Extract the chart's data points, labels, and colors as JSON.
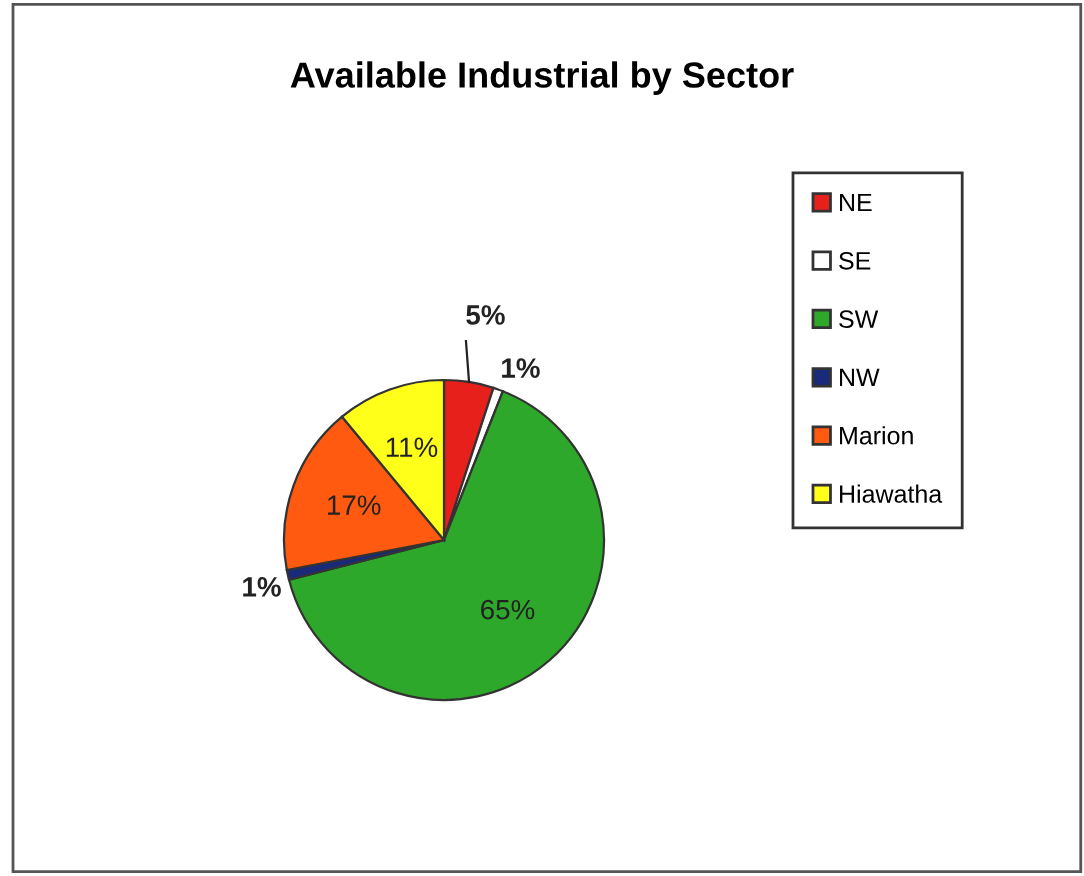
{
  "chart_data": {
    "type": "pie",
    "title": "Available Industrial by Sector",
    "categories": [
      "NE",
      "SE",
      "SW",
      "NW",
      "Marion",
      "Hiawatha"
    ],
    "values": [
      5,
      1,
      65,
      1,
      17,
      11
    ],
    "colors": [
      "#e8201c",
      "#ffffff",
      "#2ea82a",
      "#1a2a7a",
      "#ff5a10",
      "#ffff1a"
    ],
    "value_labels": [
      "5%",
      "1%",
      "65%",
      "1%",
      "17%",
      "11%"
    ],
    "legend": "right"
  }
}
